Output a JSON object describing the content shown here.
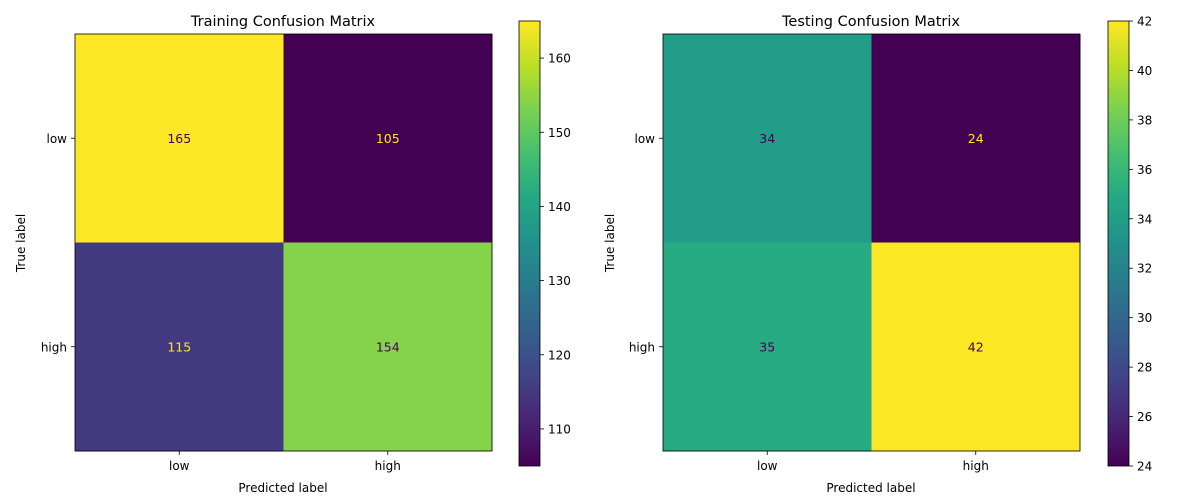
{
  "chart_data": [
    {
      "type": "heatmap",
      "title": "Training Confusion Matrix",
      "xlabel": "Predicted label",
      "ylabel": "True label",
      "x_categories": [
        "low",
        "high"
      ],
      "y_categories": [
        "low",
        "high"
      ],
      "values": [
        [
          165,
          105
        ],
        [
          115,
          154
        ]
      ],
      "colorbar": {
        "range": [
          105,
          165
        ],
        "ticks": [
          110,
          120,
          130,
          140,
          150,
          160
        ]
      },
      "colormap": "viridis"
    },
    {
      "type": "heatmap",
      "title": "Testing Confusion Matrix",
      "xlabel": "Predicted label",
      "ylabel": "True label",
      "x_categories": [
        "low",
        "high"
      ],
      "y_categories": [
        "low",
        "high"
      ],
      "values": [
        [
          34,
          24
        ],
        [
          35,
          42
        ]
      ],
      "colorbar": {
        "range": [
          24,
          42
        ],
        "ticks": [
          24,
          26,
          28,
          30,
          32,
          34,
          36,
          38,
          40,
          42
        ]
      },
      "colormap": "viridis"
    }
  ]
}
